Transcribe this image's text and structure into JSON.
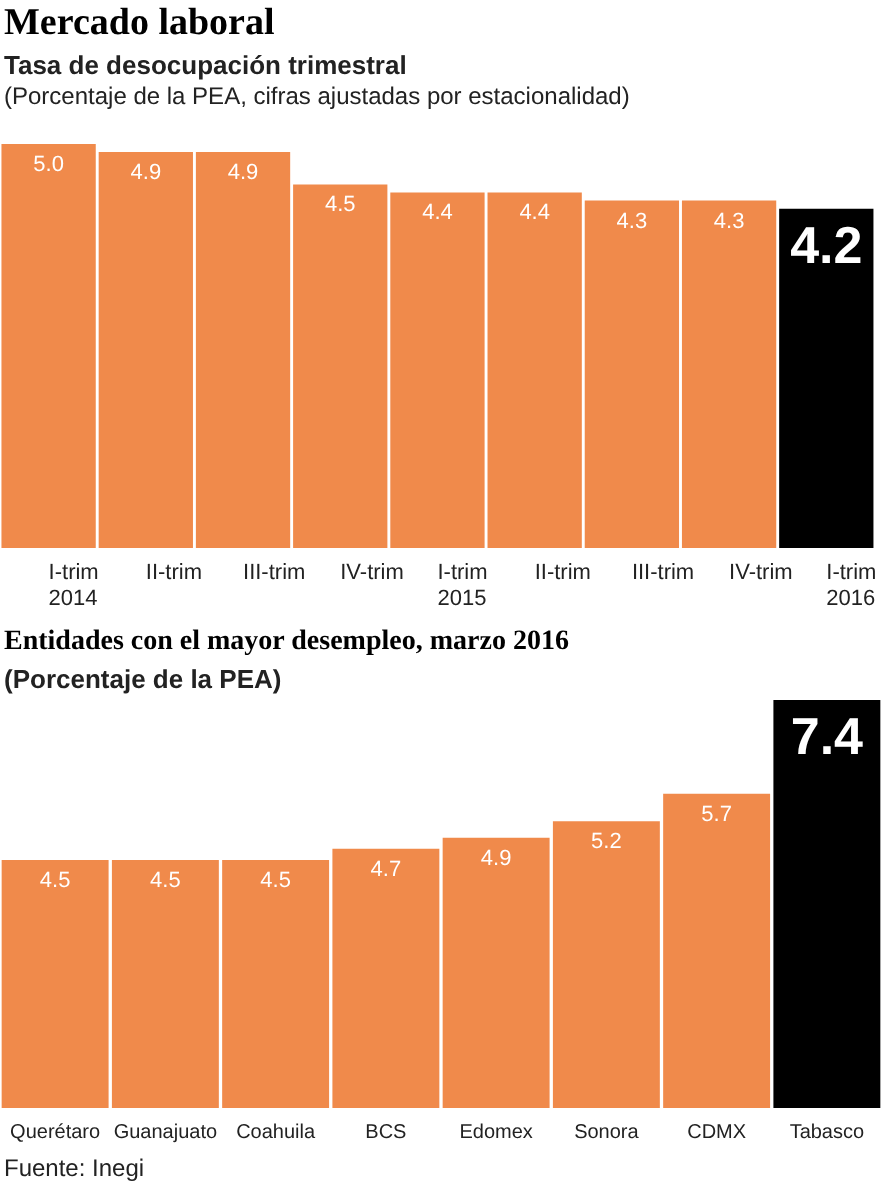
{
  "chart_data": [
    {
      "type": "bar",
      "title": "Mercado laboral",
      "subtitle": "Tasa de desocupación trimestral",
      "annotations": [
        "(Porcentaje de la PEA, cifras ajustadas por estacionalidad)"
      ],
      "categories": [
        "I-trim\n2014",
        "II-trim",
        "III-trim",
        "IV-trim",
        "I-trim\n2015",
        "II-trim",
        "III-trim",
        "IV-trim",
        "I-trim\n2016"
      ],
      "values": [
        5.0,
        4.9,
        4.9,
        4.5,
        4.4,
        4.4,
        4.3,
        4.3,
        4.2
      ],
      "colors": [
        "#f08a4b",
        "#f08a4b",
        "#f08a4b",
        "#f08a4b",
        "#f08a4b",
        "#f08a4b",
        "#f08a4b",
        "#f08a4b",
        "#000000"
      ],
      "value_labels": [
        "5.0",
        "4.9",
        "4.9",
        "4.5",
        "4.4",
        "4.4",
        "4.3",
        "4.3",
        "4.2"
      ]
    },
    {
      "type": "bar",
      "title": "Entidades con el mayor desempleo, marzo 2016",
      "subtitle": "(Porcentaje de la PEA)",
      "annotations": [
        "Fuente: Inegi"
      ],
      "categories": [
        "Querétaro",
        "Guanajuato",
        "Coahuila",
        "BCS",
        "Edomex",
        "Sonora",
        "CDMX",
        "Tabasco"
      ],
      "values": [
        4.5,
        4.5,
        4.5,
        4.7,
        4.9,
        5.2,
        5.7,
        7.4
      ],
      "colors": [
        "#f08a4b",
        "#f08a4b",
        "#f08a4b",
        "#f08a4b",
        "#f08a4b",
        "#f08a4b",
        "#f08a4b",
        "#000000"
      ],
      "value_labels": [
        "4.5",
        "4.5",
        "4.5",
        "4.7",
        "4.9",
        "5.2",
        "5.7",
        "7.4"
      ]
    }
  ]
}
